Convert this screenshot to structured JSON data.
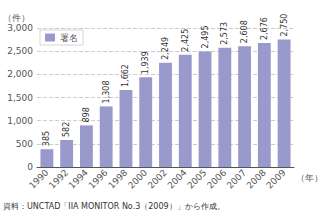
{
  "chart_data": {
    "type": "bar",
    "categories": [
      "1990",
      "1992",
      "1994",
      "1996",
      "1998",
      "2000",
      "2002",
      "2004",
      "2005",
      "2006",
      "2007",
      "2008",
      "2009"
    ],
    "series": [
      {
        "name": "署名",
        "color": "#9999cc",
        "values": [
          385,
          582,
          898,
          1308,
          1662,
          1939,
          2249,
          2425,
          2495,
          2573,
          2608,
          2676,
          2750
        ],
        "value_labels": [
          "385",
          "582",
          "898",
          "1,308",
          "1,662",
          "1,939",
          "2,249",
          "2,425",
          "2,495",
          "2,573",
          "2,608",
          "2,676",
          "2,750"
        ]
      }
    ],
    "ylabel": "（件）",
    "xlabel": "（年）",
    "ylim": [
      0,
      3000
    ],
    "yticks": [
      0,
      500,
      {
        "value": 1000,
        "label": "1,000"
      },
      {
        "value": 1500,
        "label": "1,500"
      },
      {
        "value": 2000,
        "label": "2,000"
      },
      {
        "value": 2500,
        "label": "2,500"
      },
      {
        "value": 3000,
        "label": "3,000"
      }
    ],
    "grid": true,
    "legend": "upper left",
    "data_labels": true,
    "annotations": [
      "資料：UNCTAD「IIA MONITOR No.3（2009）」から作成。"
    ]
  }
}
